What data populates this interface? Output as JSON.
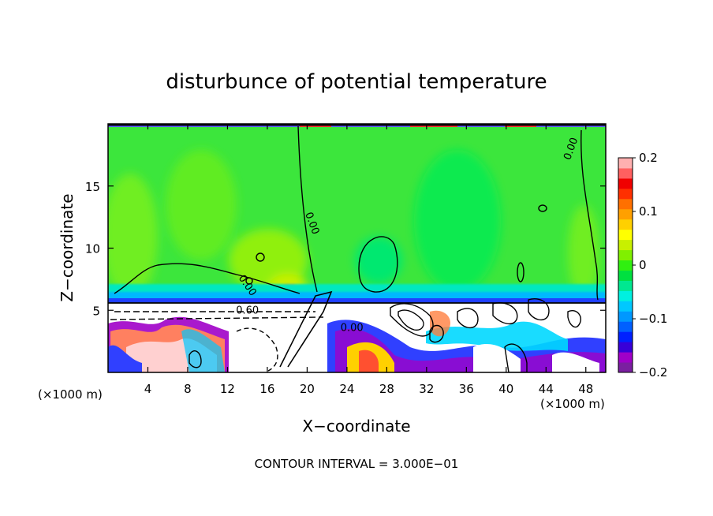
{
  "chart_data": {
    "type": "heatmap",
    "title": "disturbunce of potential temperature",
    "xlabel": "X−coordinate",
    "ylabel": "Z−coordinate",
    "x_unit_note_left": "(×1000 m)",
    "x_unit_note_right": "(×1000 m)",
    "footer": "CONTOUR INTERVAL = 3.000E−01",
    "xlim": [
      0,
      50
    ],
    "ylim": [
      0,
      20
    ],
    "xticks": [
      4,
      8,
      12,
      16,
      20,
      24,
      28,
      32,
      36,
      40,
      44,
      48
    ],
    "yticks": [
      5,
      10,
      15
    ],
    "contour_labels": [
      {
        "text": "0.00",
        "x": 46.5,
        "y": 18.0,
        "rotate": -70
      },
      {
        "text": "0.00",
        "x": 20.5,
        "y": 12.0,
        "rotate": 70
      },
      {
        "text": "0.00",
        "x": 14.0,
        "y": 7.0,
        "rotate": 55
      },
      {
        "text": "0.60",
        "x": 14.0,
        "y": 5.0,
        "rotate": 0
      },
      {
        "text": "0.00",
        "x": 24.5,
        "y": 3.6,
        "rotate": 0
      }
    ],
    "colorbar": {
      "range": [
        -0.2,
        0.2
      ],
      "tick_labels": [
        "0.2",
        "0.1",
        "0",
        "−0.1",
        "−0.2"
      ],
      "tick_values": [
        0.2,
        0.1,
        0,
        -0.1,
        -0.2
      ],
      "colors": [
        "#7a1fa0",
        "#a000c8",
        "#3800d8",
        "#0020ff",
        "#0060ff",
        "#0098ff",
        "#00c8ff",
        "#00f0e0",
        "#00e890",
        "#00e040",
        "#30f010",
        "#80f000",
        "#c8f000",
        "#ffff00",
        "#ffd000",
        "#ffa000",
        "#ff7000",
        "#ff3000",
        "#f00000",
        "#ff6060",
        "#ffb0b0"
      ]
    }
  }
}
